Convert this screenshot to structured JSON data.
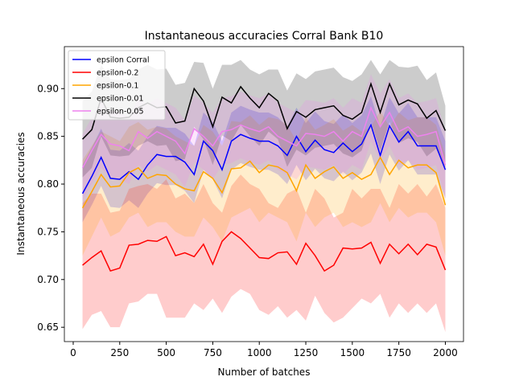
{
  "chart_data": {
    "type": "line",
    "title": "Instantaneous accuracies Corral Bank B10",
    "x_label": "Number of batches",
    "y_label": "Instantaneous accuracies",
    "x": [
      50,
      100,
      150,
      200,
      250,
      300,
      350,
      400,
      450,
      500,
      550,
      600,
      650,
      700,
      750,
      800,
      850,
      900,
      950,
      1000,
      1050,
      1100,
      1150,
      1200,
      1250,
      1300,
      1350,
      1400,
      1450,
      1500,
      1550,
      1600,
      1650,
      1700,
      1750,
      1800,
      1850,
      1900,
      1950,
      2000
    ],
    "xlim": [
      -47.5,
      2097.5
    ],
    "ylim": [
      0.635,
      0.944
    ],
    "xticks": [
      0,
      250,
      500,
      750,
      1000,
      1250,
      1500,
      1750,
      2000
    ],
    "yticks": [
      0.65,
      {
        "value": 0.7,
        "label": "0.70"
      },
      0.75,
      {
        "value": 0.8,
        "label": "0.80"
      },
      0.85,
      {
        "value": 0.9,
        "label": "0.90"
      }
    ],
    "legend": "upper left",
    "series": [
      {
        "name": "epsilon Corral",
        "color": "#0000ff",
        "values": [
          0.79,
          0.808,
          0.828,
          0.806,
          0.805,
          0.813,
          0.805,
          0.82,
          0.831,
          0.829,
          0.829,
          0.823,
          0.81,
          0.845,
          0.835,
          0.815,
          0.845,
          0.852,
          0.848,
          0.845,
          0.845,
          0.84,
          0.83,
          0.85,
          0.834,
          0.846,
          0.836,
          0.833,
          0.843,
          0.834,
          0.842,
          0.862,
          0.83,
          0.861,
          0.844,
          0.855,
          0.84,
          0.84,
          0.84,
          0.815
        ],
        "lower": [
          0.76,
          0.778,
          0.798,
          0.776,
          0.775,
          0.783,
          0.775,
          0.79,
          0.801,
          0.799,
          0.799,
          0.793,
          0.78,
          0.815,
          0.805,
          0.785,
          0.815,
          0.822,
          0.818,
          0.815,
          0.815,
          0.81,
          0.8,
          0.82,
          0.804,
          0.816,
          0.806,
          0.803,
          0.813,
          0.804,
          0.812,
          0.832,
          0.8,
          0.831,
          0.814,
          0.825,
          0.81,
          0.81,
          0.81,
          0.785
        ],
        "upper": [
          0.82,
          0.838,
          0.858,
          0.836,
          0.835,
          0.843,
          0.835,
          0.85,
          0.861,
          0.859,
          0.859,
          0.853,
          0.84,
          0.875,
          0.865,
          0.845,
          0.875,
          0.882,
          0.878,
          0.875,
          0.875,
          0.87,
          0.86,
          0.88,
          0.864,
          0.876,
          0.866,
          0.863,
          0.873,
          0.864,
          0.872,
          0.892,
          0.86,
          0.891,
          0.874,
          0.885,
          0.87,
          0.87,
          0.87,
          0.845
        ]
      },
      {
        "name": "epsilon-0.2",
        "color": "#ff0000",
        "values": [
          0.715,
          0.723,
          0.73,
          0.709,
          0.712,
          0.736,
          0.737,
          0.741,
          0.74,
          0.745,
          0.725,
          0.728,
          0.724,
          0.737,
          0.716,
          0.74,
          0.75,
          0.743,
          0.733,
          0.723,
          0.722,
          0.728,
          0.729,
          0.716,
          0.738,
          0.725,
          0.709,
          0.715,
          0.733,
          0.732,
          0.733,
          0.739,
          0.717,
          0.737,
          0.727,
          0.737,
          0.726,
          0.737,
          0.734,
          0.71
        ],
        "lower": [
          0.648,
          0.663,
          0.667,
          0.65,
          0.65,
          0.675,
          0.677,
          0.685,
          0.685,
          0.66,
          0.66,
          0.66,
          0.675,
          0.668,
          0.68,
          0.665,
          0.682,
          0.69,
          0.685,
          0.668,
          0.663,
          0.672,
          0.66,
          0.668,
          0.657,
          0.683,
          0.665,
          0.655,
          0.66,
          0.67,
          0.68,
          0.675,
          0.685,
          0.66,
          0.675,
          0.665,
          0.675,
          0.665,
          0.675,
          0.645
        ],
        "upper": [
          0.78,
          0.79,
          0.79,
          0.77,
          0.772,
          0.795,
          0.798,
          0.8,
          0.795,
          0.805,
          0.785,
          0.79,
          0.78,
          0.8,
          0.78,
          0.77,
          0.798,
          0.81,
          0.8,
          0.795,
          0.78,
          0.775,
          0.79,
          0.795,
          0.77,
          0.795,
          0.785,
          0.765,
          0.77,
          0.795,
          0.785,
          0.795,
          0.795,
          0.775,
          0.8,
          0.79,
          0.8,
          0.787,
          0.8,
          0.775
        ]
      },
      {
        "name": "epsilon-0.1",
        "color": "#ffa500",
        "values": [
          0.775,
          0.792,
          0.81,
          0.797,
          0.798,
          0.812,
          0.817,
          0.806,
          0.81,
          0.809,
          0.8,
          0.795,
          0.793,
          0.813,
          0.806,
          0.791,
          0.816,
          0.817,
          0.824,
          0.812,
          0.82,
          0.818,
          0.812,
          0.793,
          0.82,
          0.806,
          0.813,
          0.818,
          0.806,
          0.812,
          0.805,
          0.81,
          0.828,
          0.81,
          0.825,
          0.817,
          0.82,
          0.82,
          0.812,
          0.778
        ],
        "lower": [
          0.725,
          0.745,
          0.765,
          0.745,
          0.75,
          0.765,
          0.77,
          0.755,
          0.76,
          0.76,
          0.75,
          0.745,
          0.745,
          0.765,
          0.755,
          0.74,
          0.765,
          0.77,
          0.775,
          0.76,
          0.77,
          0.765,
          0.76,
          0.74,
          0.77,
          0.755,
          0.765,
          0.77,
          0.755,
          0.76,
          0.755,
          0.76,
          0.78,
          0.76,
          0.775,
          0.765,
          0.77,
          0.77,
          0.76,
          0.725
        ],
        "upper": [
          0.825,
          0.84,
          0.855,
          0.85,
          0.845,
          0.86,
          0.865,
          0.857,
          0.86,
          0.858,
          0.85,
          0.845,
          0.84,
          0.862,
          0.855,
          0.84,
          0.866,
          0.865,
          0.872,
          0.862,
          0.87,
          0.868,
          0.862,
          0.845,
          0.87,
          0.857,
          0.862,
          0.868,
          0.856,
          0.862,
          0.855,
          0.86,
          0.877,
          0.86,
          0.875,
          0.867,
          0.87,
          0.87,
          0.862,
          0.83
        ]
      },
      {
        "name": "epsilon-0.01",
        "color": "#000000",
        "values": [
          0.847,
          0.857,
          0.89,
          0.87,
          0.869,
          0.87,
          0.88,
          0.885,
          0.88,
          0.881,
          0.864,
          0.866,
          0.9,
          0.887,
          0.86,
          0.891,
          0.885,
          0.902,
          0.89,
          0.88,
          0.895,
          0.887,
          0.858,
          0.876,
          0.87,
          0.878,
          0.88,
          0.882,
          0.872,
          0.868,
          0.875,
          0.905,
          0.875,
          0.905,
          0.883,
          0.888,
          0.884,
          0.869,
          0.877,
          0.856
        ],
        "lower": [
          0.807,
          0.817,
          0.85,
          0.83,
          0.829,
          0.83,
          0.84,
          0.845,
          0.84,
          0.841,
          0.824,
          0.826,
          0.86,
          0.847,
          0.82,
          0.851,
          0.845,
          0.862,
          0.85,
          0.84,
          0.855,
          0.847,
          0.818,
          0.836,
          0.83,
          0.838,
          0.84,
          0.842,
          0.832,
          0.828,
          0.835,
          0.865,
          0.835,
          0.865,
          0.843,
          0.848,
          0.844,
          0.829,
          0.837,
          0.816
        ],
        "upper": [
          0.887,
          0.897,
          0.925,
          0.91,
          0.909,
          0.91,
          0.92,
          0.925,
          0.92,
          0.921,
          0.904,
          0.906,
          0.928,
          0.927,
          0.9,
          0.925,
          0.925,
          0.93,
          0.92,
          0.915,
          0.92,
          0.92,
          0.898,
          0.916,
          0.91,
          0.918,
          0.92,
          0.922,
          0.912,
          0.908,
          0.915,
          0.93,
          0.915,
          0.93,
          0.923,
          0.922,
          0.924,
          0.909,
          0.917,
          0.882
        ]
      },
      {
        "name": "epsilon-0.05",
        "color": "#ee82ee",
        "values": [
          0.817,
          0.835,
          0.852,
          0.842,
          0.84,
          0.835,
          0.855,
          0.848,
          0.855,
          0.85,
          0.845,
          0.832,
          0.858,
          0.85,
          0.84,
          0.855,
          0.857,
          0.862,
          0.858,
          0.855,
          0.86,
          0.85,
          0.845,
          0.84,
          0.853,
          0.852,
          0.85,
          0.855,
          0.845,
          0.855,
          0.85,
          0.88,
          0.86,
          0.875,
          0.855,
          0.86,
          0.85,
          0.852,
          0.855,
          0.82
        ],
        "lower": [
          0.782,
          0.8,
          0.817,
          0.807,
          0.805,
          0.8,
          0.82,
          0.813,
          0.82,
          0.815,
          0.81,
          0.797,
          0.823,
          0.815,
          0.805,
          0.82,
          0.822,
          0.827,
          0.823,
          0.82,
          0.825,
          0.815,
          0.81,
          0.805,
          0.818,
          0.817,
          0.815,
          0.82,
          0.81,
          0.82,
          0.815,
          0.845,
          0.825,
          0.84,
          0.82,
          0.825,
          0.815,
          0.817,
          0.82,
          0.785
        ],
        "upper": [
          0.852,
          0.87,
          0.887,
          0.877,
          0.875,
          0.87,
          0.89,
          0.883,
          0.89,
          0.885,
          0.88,
          0.867,
          0.893,
          0.885,
          0.875,
          0.89,
          0.892,
          0.897,
          0.893,
          0.89,
          0.895,
          0.885,
          0.88,
          0.875,
          0.888,
          0.887,
          0.885,
          0.89,
          0.88,
          0.89,
          0.885,
          0.915,
          0.895,
          0.91,
          0.89,
          0.895,
          0.885,
          0.887,
          0.89,
          0.855
        ]
      }
    ]
  }
}
